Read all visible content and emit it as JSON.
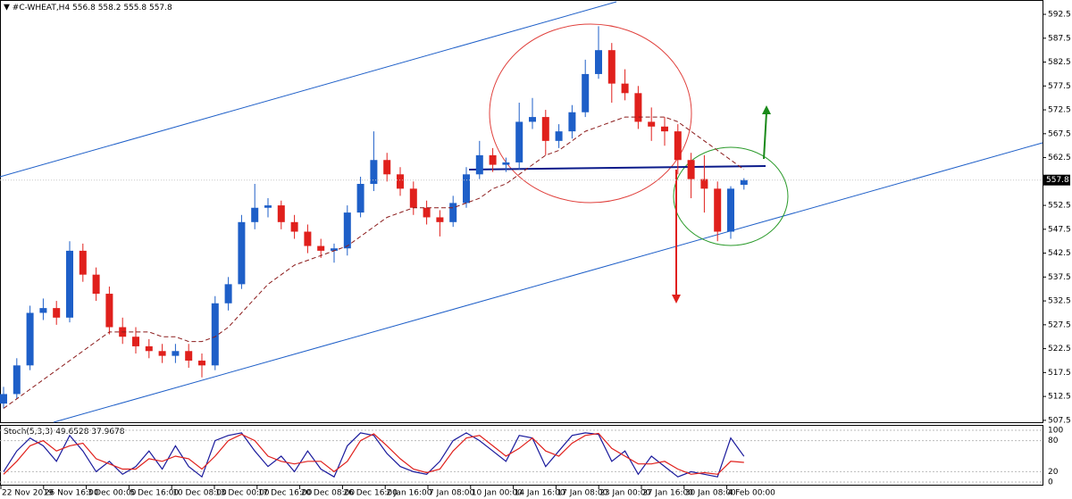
{
  "chart_data": {
    "type": "candlestick",
    "symbol": "#C-WHEAT,H4",
    "indicator": "Stoch(5,3,3)",
    "ylim": [
      507.1,
      595.5
    ],
    "yticks": [
      507.5,
      512.5,
      517.5,
      522.5,
      527.5,
      532.5,
      537.5,
      542.5,
      547.5,
      552.5,
      557.5,
      562.5,
      567.5,
      572.5,
      577.5,
      582.5,
      587.5,
      592.5
    ],
    "x_labels": [
      "22 Nov 2019",
      "26 Nov 16:00",
      "3 Dec 00:00",
      "5 Dec 16:00",
      "10 Dec 08:00",
      "13 Dec 00:00",
      "17 Dec 16:00",
      "20 Dec 08:00",
      "26 Dec 16:00",
      "2 Jan 16:00",
      "7 Jan 08:00",
      "10 Jan 00:00",
      "14 Jan 16:00",
      "17 Jan 08:00",
      "23 Jan 00:00",
      "27 Jan 16:00",
      "30 Jan 08:00",
      "4 Feb 00:00"
    ],
    "up_color": "#1e5fc8",
    "down_color": "#e0201c",
    "candles": [
      [
        511,
        514.5,
        510,
        513
      ],
      [
        513,
        520.5,
        512,
        519
      ],
      [
        519,
        531.5,
        518,
        530
      ],
      [
        530,
        533,
        528.5,
        531
      ],
      [
        531,
        532.5,
        527.5,
        529
      ],
      [
        529,
        545,
        528,
        543
      ],
      [
        543,
        544.5,
        536.5,
        538
      ],
      [
        538,
        539.5,
        532.5,
        534
      ],
      [
        534,
        535.5,
        525.5,
        527
      ],
      [
        527,
        529,
        523.5,
        525
      ],
      [
        525,
        527,
        521.5,
        523
      ],
      [
        523,
        524.5,
        520.5,
        522
      ],
      [
        522,
        523.5,
        519.5,
        521
      ],
      [
        521,
        523.5,
        519.5,
        522
      ],
      [
        522,
        523.5,
        518.5,
        520
      ],
      [
        520,
        521.5,
        516.5,
        519
      ],
      [
        519,
        533.5,
        518,
        532
      ],
      [
        532,
        537.5,
        530.5,
        536
      ],
      [
        536,
        550.5,
        535,
        549
      ],
      [
        549,
        557,
        547.5,
        552
      ],
      [
        552,
        554,
        550,
        552.5
      ],
      [
        552.5,
        553.5,
        547.5,
        549
      ],
      [
        549,
        550.5,
        545.5,
        547
      ],
      [
        547,
        548.5,
        542.5,
        544
      ],
      [
        544,
        545.5,
        541.5,
        543
      ],
      [
        543,
        544.5,
        540.5,
        543.5
      ],
      [
        543.5,
        552.5,
        542,
        551
      ],
      [
        551,
        558.5,
        550,
        557
      ],
      [
        557,
        568,
        555.5,
        562
      ],
      [
        562,
        563.5,
        557.5,
        559
      ],
      [
        559,
        560.5,
        554.5,
        556
      ],
      [
        556,
        557.5,
        550.5,
        552
      ],
      [
        552,
        553.5,
        548.5,
        550
      ],
      [
        550,
        551.5,
        546,
        549
      ],
      [
        549,
        554.5,
        548,
        553
      ],
      [
        553,
        560.5,
        552,
        559
      ],
      [
        559,
        566,
        558,
        563
      ],
      [
        563,
        564.5,
        559.5,
        561
      ],
      [
        561,
        562.5,
        559.5,
        561.5
      ],
      [
        561.5,
        574,
        560,
        570
      ],
      [
        570,
        575,
        568.5,
        571
      ],
      [
        571,
        572.5,
        563,
        566
      ],
      [
        566,
        569.5,
        564.5,
        568
      ],
      [
        568,
        573.5,
        566.5,
        572
      ],
      [
        572,
        583,
        571,
        580
      ],
      [
        580,
        590,
        579,
        585
      ],
      [
        585,
        586.5,
        574,
        578
      ],
      [
        578,
        581,
        574.5,
        576
      ],
      [
        576,
        577.5,
        568.5,
        570
      ],
      [
        570,
        573,
        566,
        569
      ],
      [
        569,
        571,
        565,
        568
      ],
      [
        568,
        569.5,
        559,
        562
      ],
      [
        562,
        563.5,
        554,
        558
      ],
      [
        558,
        563,
        551,
        556
      ],
      [
        556,
        557.5,
        545,
        547
      ],
      [
        547,
        556.5,
        545.5,
        556
      ],
      [
        556.8,
        558.2,
        555.8,
        557.8
      ]
    ],
    "ma": {
      "color": "#8b1a1a",
      "values": [
        510,
        512,
        514,
        516,
        518,
        520,
        522,
        524,
        526,
        526,
        526,
        526,
        525,
        525,
        524,
        524,
        525,
        527,
        530,
        533,
        536,
        538,
        540,
        541,
        542,
        543,
        544,
        546,
        548,
        550,
        551,
        552,
        552,
        552,
        552,
        553,
        554,
        556,
        557,
        559,
        561,
        563,
        564,
        566,
        568,
        569,
        570,
        571,
        571,
        571,
        571,
        570,
        568,
        566,
        564,
        562,
        560
      ]
    },
    "stoch": {
      "ylim": [
        -5.2,
        110.3
      ],
      "yticks": [
        0,
        20,
        80,
        100
      ],
      "series": [
        {
          "color": "#1a1a9c",
          "values": [
            20,
            60,
            85,
            70,
            40,
            90,
            60,
            20,
            40,
            15,
            30,
            60,
            25,
            70,
            30,
            10,
            80,
            90,
            95,
            60,
            30,
            50,
            20,
            60,
            25,
            10,
            70,
            95,
            90,
            55,
            30,
            20,
            15,
            40,
            80,
            95,
            80,
            60,
            40,
            90,
            85,
            30,
            60,
            90,
            95,
            92,
            40,
            60,
            15,
            50,
            30,
            10,
            20,
            15,
            10,
            85,
            49.6528
          ]
        },
        {
          "color": "#e0201c",
          "values": [
            15,
            40,
            70,
            80,
            60,
            70,
            75,
            45,
            35,
            25,
            25,
            45,
            40,
            50,
            45,
            25,
            50,
            80,
            92,
            80,
            50,
            40,
            35,
            40,
            40,
            20,
            40,
            80,
            93,
            70,
            45,
            25,
            18,
            25,
            60,
            85,
            90,
            70,
            50,
            65,
            85,
            60,
            50,
            75,
            90,
            94,
            65,
            50,
            35,
            35,
            40,
            25,
            15,
            18,
            15,
            40,
            37.9678
          ]
        }
      ]
    }
  }
}
